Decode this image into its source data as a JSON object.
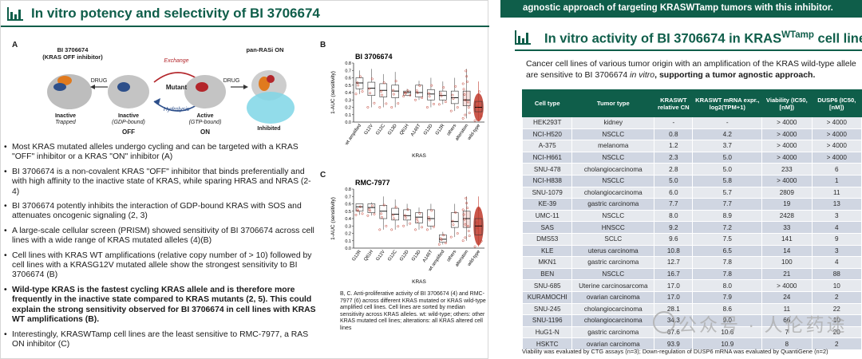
{
  "left": {
    "title": "In vitro potency and selectivity of BI 3706674",
    "panel_a": {
      "letter": "A",
      "label_inhibitor": "BI 3706674",
      "label_inhibitor_sub": "(KRAS OFF inhibitor)",
      "label_panras": "pan-RASi ON",
      "exchange": "Exchange",
      "hydrolysis": "Hydrolysis",
      "mutant": "Mutant",
      "drug1": "DRUG",
      "drug2": "DRUG",
      "inactive_trapped": "Inactive",
      "inactive_trapped_sub": "Trapped",
      "inactive_gdp": "Inactive",
      "inactive_gdp_sub": "(GDP-bound)",
      "off": "OFF",
      "active": "Active",
      "active_sub": "(GTP-bound)",
      "on": "ON",
      "inhibited": "Inhibited"
    },
    "bullets": [
      "Most KRAS mutated alleles undergo cycling and can be targeted with a KRAS \"OFF\" inhibitor or a KRAS \"ON\" inhibitor (A)",
      "BI 3706674 is a non-covalent KRAS \"OFF\" inhibitor that binds preferentially and with high affinity to the inactive state of KRAS, while sparing HRAS and NRAS (2-4)",
      "BI 3706674 potently inhibits the interaction of GDP-bound KRAS with SOS and attenuates oncogenic signaling (2, 3)",
      "A large-scale cellular screen (PRISM) showed sensitivity of BI 3706674 across cell lines with a wide range of KRAS mutated alleles (4)(B)",
      "Cell lines with KRAS WT amplifications (relative copy number of > 10) followed by cell lines with a KRASG12V mutated allele show the strongest sensitivity to BI 3706674 (B)",
      "Wild-type KRAS is the fastest cycling KRAS allele and is therefore more frequently in the inactive state compared to KRAS mutants (2, 5). This could explain the strong sensitivity observed for BI 3706674 in cell lines with KRAS WT amplifications (B).",
      "Interestingly, KRASWTamp cell lines are the least sensitive to RMC-7977, a RAS ON inhibitor (C)"
    ],
    "caption": "B, C. Anti-proliferative activity of BI 3706674 (4) and RMC-7977 (6) across different KRAS mutated or KRAS wild-type amplified cell lines. Cell lines are sorted by median sensitivity across KRAS alleles. wt: wild-type; others: other KRAS mutated cell lines; alterations: all KRAS altered cell lines"
  },
  "chart_data": [
    {
      "type": "boxplot",
      "panel": "B",
      "title": "BI 3706674",
      "ylabel": "1-AUC (sensitivity)",
      "xlabel": "KRAS",
      "ylim": [
        0,
        0.8
      ],
      "yticks": [
        0.0,
        0.1,
        0.2,
        0.3,
        0.4,
        0.5,
        0.6,
        0.7,
        0.8
      ],
      "categories": [
        "wt amplified",
        "G12V",
        "G12C",
        "G13D",
        "Q61H",
        "A146T",
        "G12D",
        "G12R",
        "others",
        "alteration",
        "wild-type"
      ],
      "medians": [
        0.53,
        0.46,
        0.43,
        0.42,
        0.4,
        0.4,
        0.38,
        0.36,
        0.33,
        0.3,
        0.2
      ],
      "q1": [
        0.45,
        0.36,
        0.34,
        0.33,
        0.36,
        0.34,
        0.3,
        0.3,
        0.25,
        0.22,
        0.14
      ],
      "q3": [
        0.6,
        0.54,
        0.52,
        0.5,
        0.42,
        0.5,
        0.44,
        0.42,
        0.42,
        0.42,
        0.28
      ],
      "whisker_lo": [
        0.38,
        0.2,
        0.2,
        0.2,
        0.35,
        0.3,
        0.2,
        0.24,
        0.15,
        0.05,
        0.02
      ],
      "whisker_hi": [
        0.7,
        0.72,
        0.65,
        0.68,
        0.45,
        0.56,
        0.6,
        0.55,
        0.6,
        0.72,
        0.55
      ]
    },
    {
      "type": "boxplot",
      "panel": "C",
      "title": "RMC-7977",
      "ylabel": "1-AUC (sensitivity)",
      "xlabel": "KRAS",
      "ylim": [
        0,
        0.8
      ],
      "yticks": [
        0.0,
        0.1,
        0.2,
        0.3,
        0.4,
        0.5,
        0.6,
        0.7,
        0.8
      ],
      "categories": [
        "G12R",
        "Q61H",
        "G12V",
        "G12C",
        "G12D",
        "G13D",
        "A146T",
        "wt amplified",
        "others",
        "alteration",
        "wild-type"
      ],
      "medians": [
        0.56,
        0.55,
        0.5,
        0.46,
        0.44,
        0.42,
        0.4,
        0.12,
        0.36,
        0.4,
        0.3
      ],
      "q1": [
        0.5,
        0.48,
        0.4,
        0.38,
        0.38,
        0.34,
        0.3,
        0.08,
        0.28,
        0.28,
        0.18
      ],
      "q3": [
        0.6,
        0.6,
        0.58,
        0.54,
        0.52,
        0.48,
        0.52,
        0.18,
        0.48,
        0.5,
        0.4
      ],
      "whisker_lo": [
        0.45,
        0.44,
        0.25,
        0.25,
        0.3,
        0.25,
        0.25,
        0.05,
        0.15,
        0.1,
        0.02
      ],
      "whisker_hi": [
        0.6,
        0.62,
        0.7,
        0.66,
        0.6,
        0.55,
        0.6,
        0.22,
        0.6,
        0.7,
        0.7
      ]
    }
  ],
  "right": {
    "top_banner": "agnostic approach of targeting KRASWTamp tumors with this inhibitor.",
    "title_pre": "In vitro activity of BI 3706674 in KRAS",
    "title_sup": "WTamp",
    "title_post": " cell lines",
    "intro_plain": "Cancer cell lines of various tumor origin with an amplification of the KRAS wild-type allele are sensitive to BI 3706674 ",
    "intro_italic": "in vitro",
    "intro_bold": ", supporting a tumor agnostic approach.",
    "table": {
      "headers": [
        "Cell type",
        "Tumor type",
        "KRASWT relative CN",
        "KRASWT mRNA expr., log2(TPM+1)",
        "Viability (IC50, [nM])",
        "DUSP6 (IC50, [nM])"
      ],
      "rows": [
        [
          "HEK293T",
          "kidney",
          "-",
          "-",
          "> 4000",
          "> 4000"
        ],
        [
          "NCI-H520",
          "NSCLC",
          "0.8",
          "4.2",
          "> 4000",
          "> 4000"
        ],
        [
          "A-375",
          "melanoma",
          "1.2",
          "3.7",
          "> 4000",
          "> 4000"
        ],
        [
          "NCI-H661",
          "NSCLC",
          "2.3",
          "5.0",
          "> 4000",
          "> 4000"
        ],
        [
          "SNU-478",
          "cholangiocarcinoma",
          "2.8",
          "5.0",
          "233",
          "6"
        ],
        [
          "NCI-H838",
          "NSCLC",
          "5.0",
          "5.8",
          "> 4000",
          "1"
        ],
        [
          "SNU-1079",
          "cholangiocarcinoma",
          "6.0",
          "5.7",
          "2809",
          "11"
        ],
        [
          "KE-39",
          "gastric carcinoma",
          "7.7",
          "7.7",
          "19",
          "13"
        ],
        [
          "UMC-11",
          "NSCLC",
          "8.0",
          "8.9",
          "2428",
          "3"
        ],
        [
          "SAS",
          "HNSCC",
          "9.2",
          "7.2",
          "33",
          "4"
        ],
        [
          "DMS53",
          "SCLC",
          "9.6",
          "7.5",
          "141",
          "9"
        ],
        [
          "KLE",
          "uterus carcinoma",
          "10.8",
          "6.5",
          "14",
          "3"
        ],
        [
          "MKN1",
          "gastric carcinoma",
          "12.7",
          "7.8",
          "100",
          "4"
        ],
        [
          "BEN",
          "NSCLC",
          "16.7",
          "7.8",
          "21",
          "88"
        ],
        [
          "SNU-685",
          "Uterine carcinosarcoma",
          "17.0",
          "8.0",
          "> 4000",
          "10"
        ],
        [
          "KURAMOCHI",
          "ovarian carcinoma",
          "17.0",
          "7.9",
          "24",
          "2"
        ],
        [
          "SNU-245",
          "cholangiocarcinoma",
          "28.1",
          "8.6",
          "11",
          "22"
        ],
        [
          "SNU-1196",
          "cholangiocarcinoma",
          "34.3",
          "9.0",
          "66",
          "10"
        ],
        [
          "HuG1-N",
          "gastric carcinoma",
          "67.6",
          "10.6",
          "7",
          "20"
        ],
        [
          "HSKTC",
          "ovarian carcinoma",
          "93.9",
          "10.9",
          "8",
          "2"
        ]
      ]
    },
    "footnote": "Viability was evaluated by CTG assays (n=3); Down-regulation of DUSP6 mRNA was evaluated by QuantiGene (n=2)",
    "watermark": "公众号 · 人伦药途"
  },
  "colors": {
    "brand": "#0f5e4a",
    "violin": "#c0392b",
    "red_mol": "#b3262b",
    "blue_mol": "#2d4f8a",
    "cyan": "#7fd6e6"
  }
}
